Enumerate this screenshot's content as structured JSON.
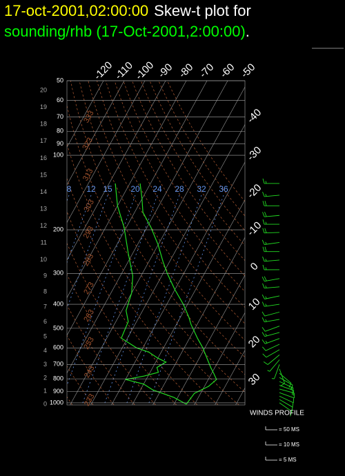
{
  "chart_data": {
    "type": "skew-t",
    "title_time": "17-oct-2001,02:00:00",
    "title_text": "Skew-t plot for",
    "subtitle": "sounding/rhb (17-Oct-2001,2:00:00)",
    "subtitle_end": ".",
    "ylim": [
      50,
      1020
    ],
    "yticks": [
      50,
      60,
      70,
      80,
      90,
      100,
      200,
      300,
      400,
      500,
      600,
      700,
      800,
      900,
      1000
    ],
    "height_ticks": [
      0,
      1,
      2,
      3,
      4,
      5,
      6,
      7,
      8,
      9,
      10,
      11,
      12,
      13,
      14,
      15,
      16,
      17,
      18,
      19,
      20
    ],
    "xticks": [
      -120,
      -110,
      -100,
      -90,
      -80,
      -70,
      -60,
      -50,
      -40,
      -30,
      -20,
      -10,
      0,
      10,
      20,
      30
    ],
    "dry_adiabats": [
      223,
      233,
      243,
      253,
      263,
      273,
      283,
      293,
      303,
      313,
      323,
      333,
      343,
      353,
      363,
      373,
      383,
      393,
      403,
      413,
      423,
      433
    ],
    "mixing_ratio": [
      8,
      12,
      15,
      20,
      24,
      28,
      32,
      36
    ],
    "series": [
      {
        "name": "temperature",
        "color": "#22dd22",
        "pressure": [
          130,
          150,
          170,
          196,
          230,
          270,
          300,
          349,
          400,
          450,
          482,
          550,
          600,
          664,
          720,
          760,
          805,
          830,
          858,
          916,
          1013
        ],
        "values": [
          -75,
          -70,
          -66,
          -58,
          -50,
          -43,
          -38,
          -30,
          -22,
          -16,
          -13,
          -6,
          -1,
          4,
          8,
          11,
          14,
          13,
          12,
          7,
          6
        ]
      },
      {
        "name": "dewpoint",
        "color": "#22dd22",
        "pressure": [
          130,
          160,
          196,
          250,
          307,
          360,
          424,
          470,
          548,
          600,
          624,
          660,
          685,
          720,
          753,
          780,
          805,
          840,
          887,
          950,
          1013
        ],
        "values": [
          -87,
          -80,
          -71,
          -62,
          -54,
          -50,
          -48,
          -44,
          -43,
          -33,
          -26,
          -20,
          -15,
          -18,
          -16,
          -22,
          -30,
          -20,
          -14,
          -2,
          6
        ]
      }
    ],
    "winds": {
      "pressure": [
        130,
        145,
        160,
        175,
        190,
        205,
        225,
        245,
        265,
        290,
        315,
        340,
        370,
        400,
        430,
        460,
        490,
        520,
        550,
        580,
        610,
        640,
        670,
        700,
        730,
        760,
        790,
        820,
        850,
        880,
        910,
        940,
        970,
        1000
      ],
      "speed": [
        15,
        15,
        20,
        20,
        15,
        20,
        15,
        20,
        15,
        15,
        20,
        15,
        15,
        15,
        10,
        15,
        10,
        15,
        15,
        10,
        10,
        10,
        5,
        5,
        10,
        10,
        10,
        15,
        10,
        15,
        10,
        10,
        10,
        10
      ],
      "direction": [
        270,
        265,
        270,
        265,
        270,
        268,
        262,
        270,
        265,
        270,
        260,
        265,
        258,
        262,
        255,
        260,
        250,
        255,
        250,
        245,
        240,
        230,
        220,
        200,
        160,
        130,
        120,
        115,
        110,
        105,
        110,
        115,
        120,
        125
      ]
    },
    "legend_title": "WINDS PROFILE",
    "legend_items": [
      "= 50 MS",
      "= 10 MS",
      "= 5 MS"
    ]
  }
}
